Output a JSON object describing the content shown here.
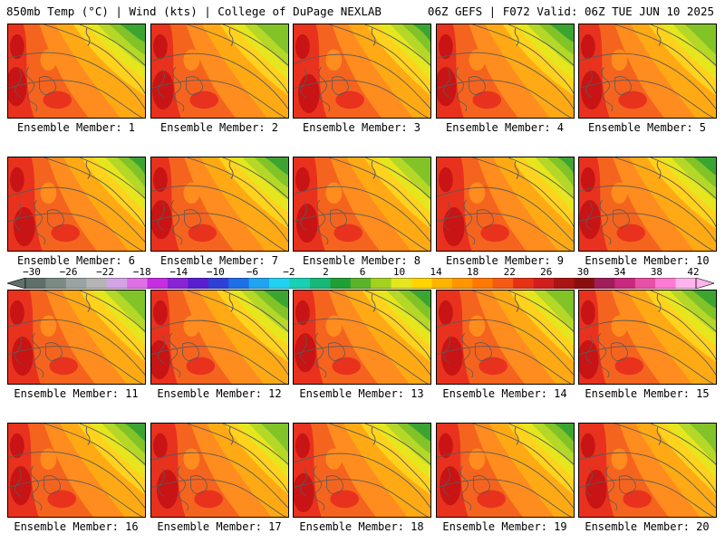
{
  "header": {
    "left": "850mb Temp (°C) | Wind (kts) | College of DuPage NEXLAB",
    "right": "06Z GEFS | F072 Valid: 06Z TUE JUN 10 2025"
  },
  "panels": [
    {
      "label": "Ensemble Member: 1"
    },
    {
      "label": "Ensemble Member: 2"
    },
    {
      "label": "Ensemble Member: 3"
    },
    {
      "label": "Ensemble Member: 4"
    },
    {
      "label": "Ensemble Member: 5"
    },
    {
      "label": "Ensemble Member: 6"
    },
    {
      "label": "Ensemble Member: 7"
    },
    {
      "label": "Ensemble Member: 8"
    },
    {
      "label": "Ensemble Member: 9"
    },
    {
      "label": "Ensemble Member: 10"
    },
    {
      "label": "Ensemble Member: 11"
    },
    {
      "label": "Ensemble Member: 12"
    },
    {
      "label": "Ensemble Member: 13"
    },
    {
      "label": "Ensemble Member: 14"
    },
    {
      "label": "Ensemble Member: 15"
    },
    {
      "label": "Ensemble Member: 16"
    },
    {
      "label": "Ensemble Member: 17"
    },
    {
      "label": "Ensemble Member: 18"
    },
    {
      "label": "Ensemble Member: 19"
    },
    {
      "label": "Ensemble Member: 20"
    }
  ],
  "colorbar": {
    "labels": [
      "−30",
      "−26",
      "−22",
      "−18",
      "−14",
      "−10",
      "−6",
      "−2",
      "2",
      "6",
      "10",
      "14",
      "18",
      "22",
      "26",
      "30",
      "34",
      "38",
      "42"
    ],
    "colors": [
      "#5f6f69",
      "#7c8a84",
      "#9aa3a3",
      "#b4b4b4",
      "#d2a4e6",
      "#e070e6",
      "#c62de0",
      "#8a23d6",
      "#5a1ed2",
      "#2f3fd8",
      "#1e6ee6",
      "#1fa5f0",
      "#20d2f0",
      "#19cfb4",
      "#18b878",
      "#1fa035",
      "#5ab428",
      "#a3d21e",
      "#e6e61e",
      "#ffd400",
      "#ffb400",
      "#ff9600",
      "#ff7800",
      "#f55a14",
      "#e63214",
      "#d21e1e",
      "#aa1414",
      "#8c0f0f",
      "#a01c5a",
      "#c8287d",
      "#e650a5",
      "#ff7ad2",
      "#ffb4eb"
    ]
  },
  "map_colors": {
    "t36": "#c81414",
    "t30": "#e8321e",
    "t26": "#f5641e",
    "t22": "#ff8c1e",
    "t18": "#ffaa14",
    "t14": "#ffd21e",
    "t10": "#e6e61e",
    "t6": "#b4d728",
    "t2": "#82c328",
    "tm2": "#3ca532",
    "contour": "#5a5a5a"
  }
}
